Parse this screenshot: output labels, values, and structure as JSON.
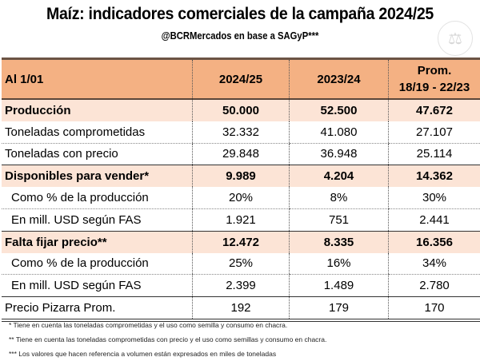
{
  "header": {
    "title": "Maíz: indicadores comerciales de la campaña 2024/25",
    "subtitle": "@BCRMercados en base a SAGyP***",
    "logo_icon": "scales-of-justice-seal-icon"
  },
  "table": {
    "columns": [
      "Al 1/01",
      "2024/25",
      "2023/24",
      "Prom.\n18/19 - 22/23"
    ],
    "col3_line1": "Prom.",
    "col3_line2": "18/19 - 22/23",
    "rows": [
      {
        "label": "Producción",
        "values": [
          "50.000",
          "52.500",
          "47.672"
        ],
        "bold": true
      },
      {
        "label": "Toneladas comprometidas",
        "values": [
          "32.332",
          "41.080",
          "27.107"
        ]
      },
      {
        "label": "Toneladas con precio",
        "values": [
          "29.848",
          "36.948",
          "25.114"
        ]
      },
      {
        "label": "Disponibles para vender*",
        "values": [
          "9.989",
          "4.204",
          "14.362"
        ],
        "bold": true
      },
      {
        "label": "Como % de la producción",
        "values": [
          "20%",
          "8%",
          "30%"
        ]
      },
      {
        "label": "En mill. USD según FAS",
        "values": [
          "1.921",
          "751",
          "2.441"
        ]
      },
      {
        "label": "Falta fijar precio**",
        "values": [
          "12.472",
          "8.335",
          "16.356"
        ],
        "bold": true
      },
      {
        "label": "Como % de la producción",
        "values": [
          "25%",
          "16%",
          "34%"
        ]
      },
      {
        "label": "En mill. USD según FAS",
        "values": [
          "2.399",
          "1.489",
          "2.780"
        ]
      },
      {
        "label": "Precio Pizarra Prom.",
        "values": [
          "192",
          "179",
          "170"
        ]
      }
    ]
  },
  "footnotes": [
    "* Tiene en cuenta las toneladas comprometidas y el uso como semilla y consumo en chacra.",
    "** Tiene en cuenta las toneladas comprometidas con precio y el uso como semillas y consumo en chacra.",
    "*** Los valores que hacen referencia a volumen están expresados en miles de toneladas"
  ],
  "colors": {
    "header_bg": "#F4B183",
    "highlight_bg": "#FCE4D6",
    "top_border": "#6b5445"
  }
}
